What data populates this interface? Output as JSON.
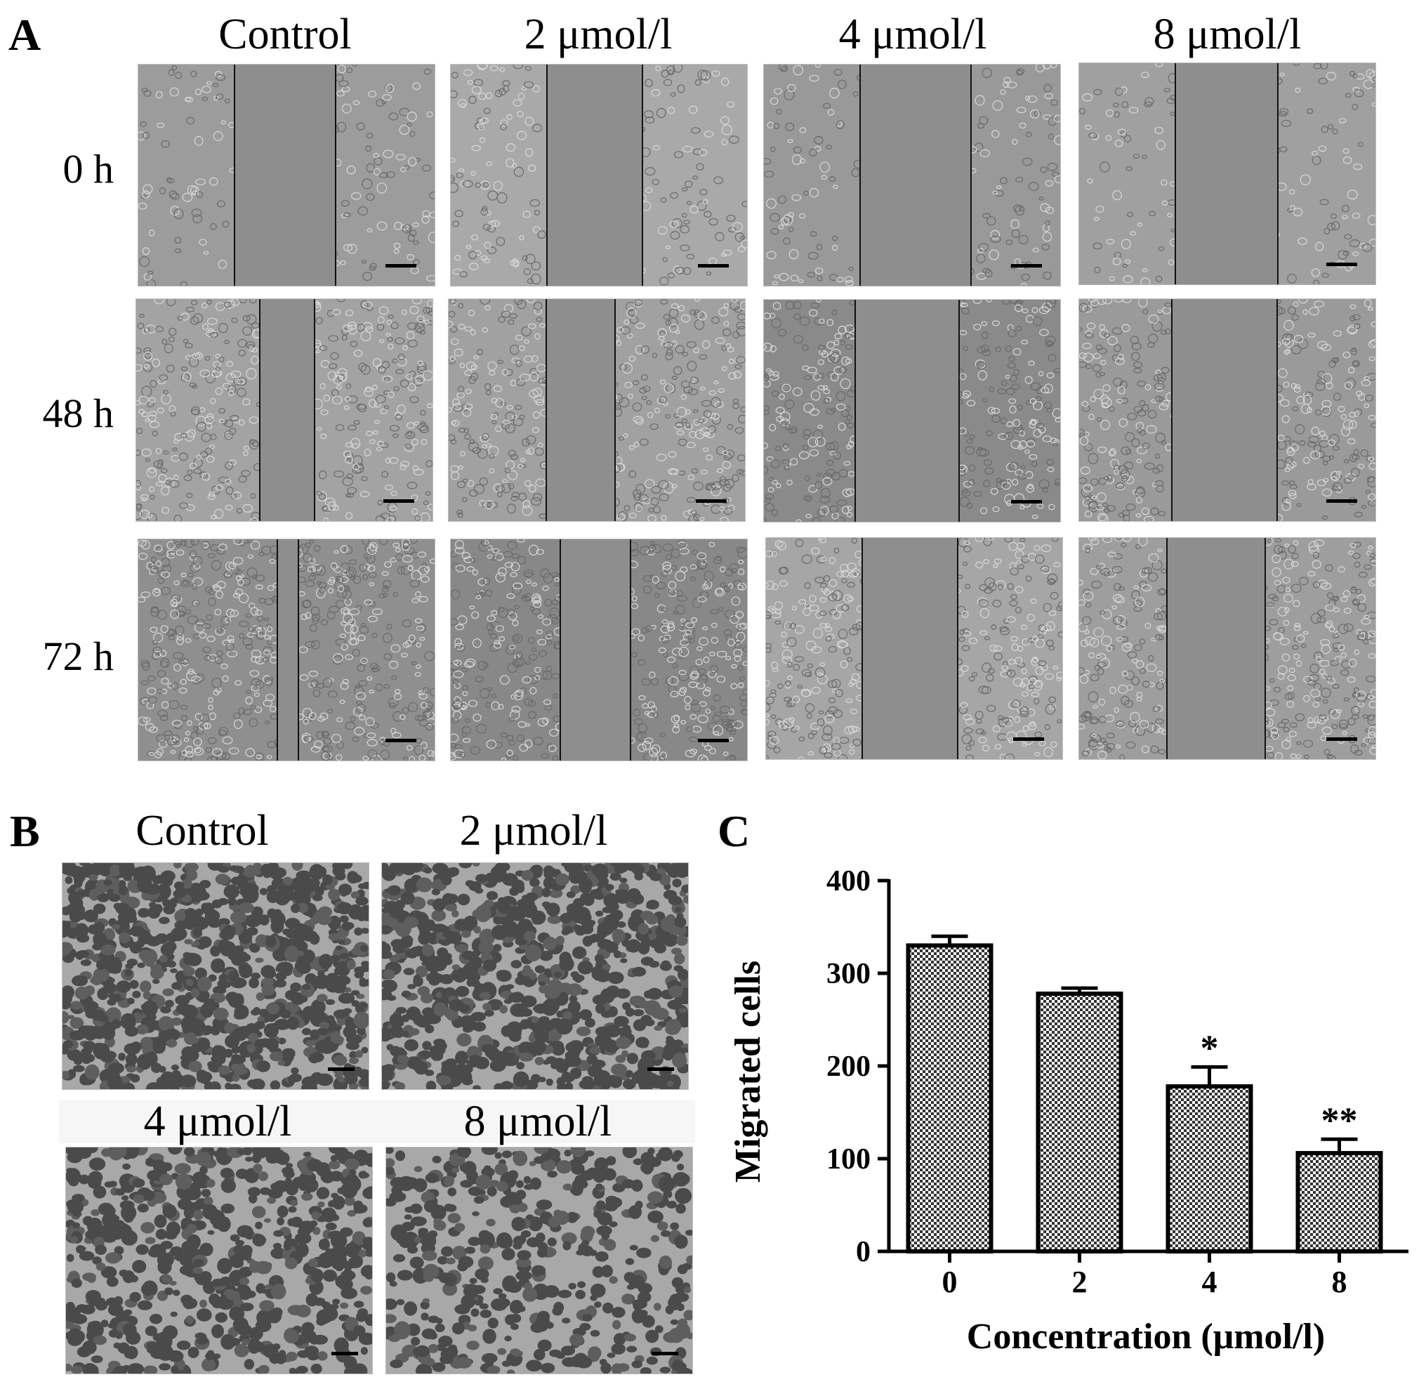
{
  "figure": {
    "panel_a": {
      "letter": "A",
      "columns": [
        "Control",
        "2 μmol/l",
        "4 μmol/l",
        "8 μmol/l"
      ],
      "rows": [
        "0 h",
        "48 h",
        "72 h"
      ]
    },
    "panel_b": {
      "letter": "B",
      "labels": [
        "Control",
        "2 μmol/l",
        "4 μmol/l",
        "8 μmol/l"
      ]
    },
    "panel_c": {
      "letter": "C"
    }
  },
  "chart_data": {
    "type": "bar",
    "categories": [
      "0",
      "2",
      "4",
      "8"
    ],
    "values": [
      330,
      278,
      178,
      106
    ],
    "errors": [
      10,
      6,
      21,
      15
    ],
    "annotations": [
      "",
      "",
      "*",
      "**"
    ],
    "xlabel": "Concentration (μmol/l)",
    "ylabel": "Migrated cells",
    "ylim": [
      0,
      400
    ],
    "yticks": [
      0,
      100,
      200,
      300,
      400
    ],
    "bar_pattern": "checkered",
    "grid": false
  }
}
